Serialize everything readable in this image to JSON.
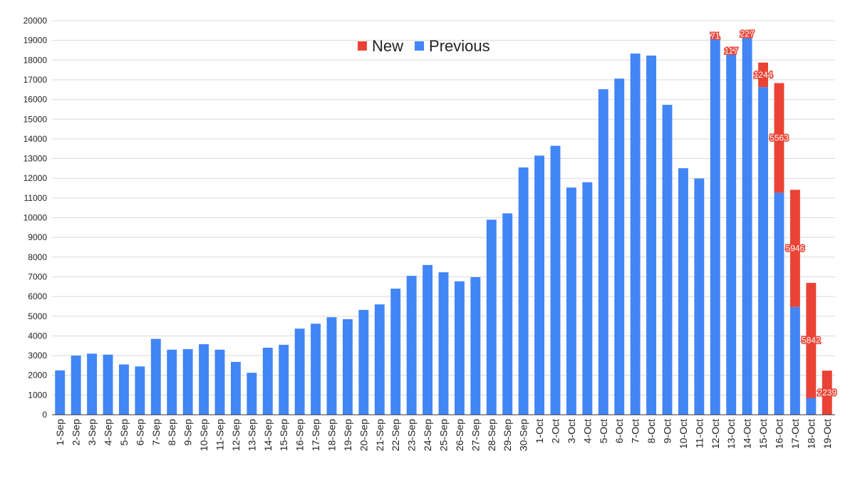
{
  "chart_data": {
    "type": "bar",
    "stacked": true,
    "categories": [
      "1-Sep",
      "2-Sep",
      "3-Sep",
      "4-Sep",
      "5-Sep",
      "6-Sep",
      "7-Sep",
      "8-Sep",
      "9-Sep",
      "10-Sep",
      "11-Sep",
      "12-Sep",
      "13-Sep",
      "14-Sep",
      "15-Sep",
      "16-Sep",
      "17-Sep",
      "18-Sep",
      "19-Sep",
      "20-Sep",
      "21-Sep",
      "22-Sep",
      "23-Sep",
      "24-Sep",
      "25-Sep",
      "26-Sep",
      "27-Sep",
      "28-Sep",
      "29-Sep",
      "30-Sep",
      "1-Oct",
      "2-Oct",
      "3-Oct",
      "4-Oct",
      "5-Oct",
      "6-Oct",
      "7-Oct",
      "8-Oct",
      "9-Oct",
      "10-Oct",
      "11-Oct",
      "12-Oct",
      "13-Oct",
      "14-Oct",
      "15-Oct",
      "16-Oct",
      "17-Oct",
      "18-Oct",
      "19-Oct"
    ],
    "series": [
      {
        "name": "Previous",
        "color": "#4285f4",
        "values": [
          2250,
          3000,
          3100,
          3050,
          2550,
          2450,
          3850,
          3300,
          3330,
          3580,
          3300,
          2680,
          2130,
          3400,
          3550,
          4370,
          4620,
          4950,
          4850,
          5320,
          5600,
          6400,
          7050,
          7600,
          7230,
          6770,
          6980,
          9900,
          10220,
          12550,
          13150,
          13650,
          11530,
          11800,
          16520,
          17060,
          18330,
          18230,
          15730,
          12510,
          11990,
          19150,
          18350,
          19110,
          16630,
          11270,
          5470,
          850,
          0
        ]
      },
      {
        "name": "New",
        "color": "#ea4335",
        "values": [
          0,
          0,
          0,
          0,
          0,
          0,
          0,
          0,
          0,
          0,
          0,
          0,
          0,
          0,
          0,
          0,
          0,
          0,
          0,
          0,
          0,
          0,
          0,
          0,
          0,
          0,
          0,
          0,
          0,
          0,
          0,
          0,
          0,
          0,
          0,
          0,
          0,
          0,
          0,
          0,
          0,
          71,
          117,
          227,
          1244,
          5563,
          5946,
          5842,
          2239
        ]
      }
    ],
    "data_labels": [
      {
        "category": "12-Oct",
        "text": "71"
      },
      {
        "category": "13-Oct",
        "text": "117"
      },
      {
        "category": "14-Oct",
        "text": "227"
      },
      {
        "category": "15-Oct",
        "text": "1244"
      },
      {
        "category": "16-Oct",
        "text": "5563"
      },
      {
        "category": "17-Oct",
        "text": "5946"
      },
      {
        "category": "18-Oct",
        "text": "5842"
      },
      {
        "category": "19-Oct",
        "text": "2239"
      }
    ],
    "ylim": [
      0,
      20000
    ],
    "ytick_step": 1000,
    "grid": true,
    "legend": [
      {
        "name": "New",
        "color": "#ea4335"
      },
      {
        "name": "Previous",
        "color": "#4285f4"
      }
    ],
    "legend_position": "top-center",
    "title": "",
    "xlabel": "",
    "ylabel": ""
  }
}
